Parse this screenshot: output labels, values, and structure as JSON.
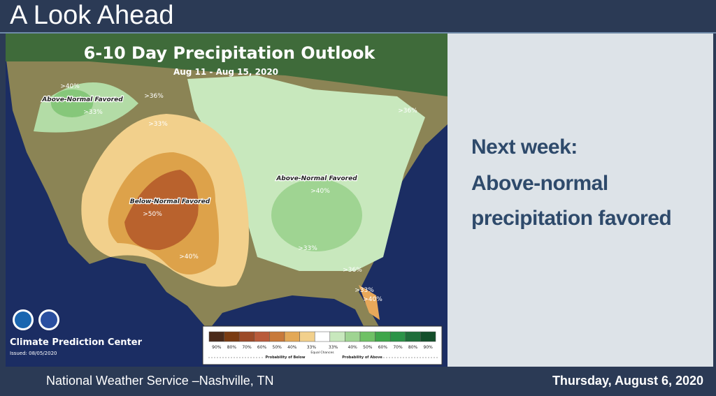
{
  "header": {
    "title": "A Look Ahead"
  },
  "map": {
    "title": "6-10 Day Precipitation Outlook",
    "subtitle": "Aug 11 - Aug 15, 2020",
    "labels": [
      ">40%",
      "Above-Normal Favored",
      ">33%",
      ">36%",
      ">33%",
      "Below-Normal Favored",
      ">50%",
      ">40%",
      "Above-Normal Favored",
      ">40%",
      ">33%",
      ">36%",
      ">36%",
      ">33%",
      ">40%"
    ],
    "agency": "Climate Prediction Center",
    "issued": "Issued: 08/05/2020",
    "legend": {
      "levels": [
        "90%",
        "80%",
        "70%",
        "60%",
        "50%",
        "40%",
        "33%",
        "33%",
        "40%",
        "50%",
        "60%",
        "70%",
        "80%",
        "90%"
      ],
      "equal": "Equal Chances",
      "below": "Probability of Below",
      "above": "Probability of Above"
    }
  },
  "side": {
    "lines": [
      "Next week:",
      "Above-normal",
      "precipitation favored"
    ]
  },
  "footer": {
    "left": "National Weather Service –Nashville, TN",
    "right": "Thursday, August 6, 2020"
  }
}
